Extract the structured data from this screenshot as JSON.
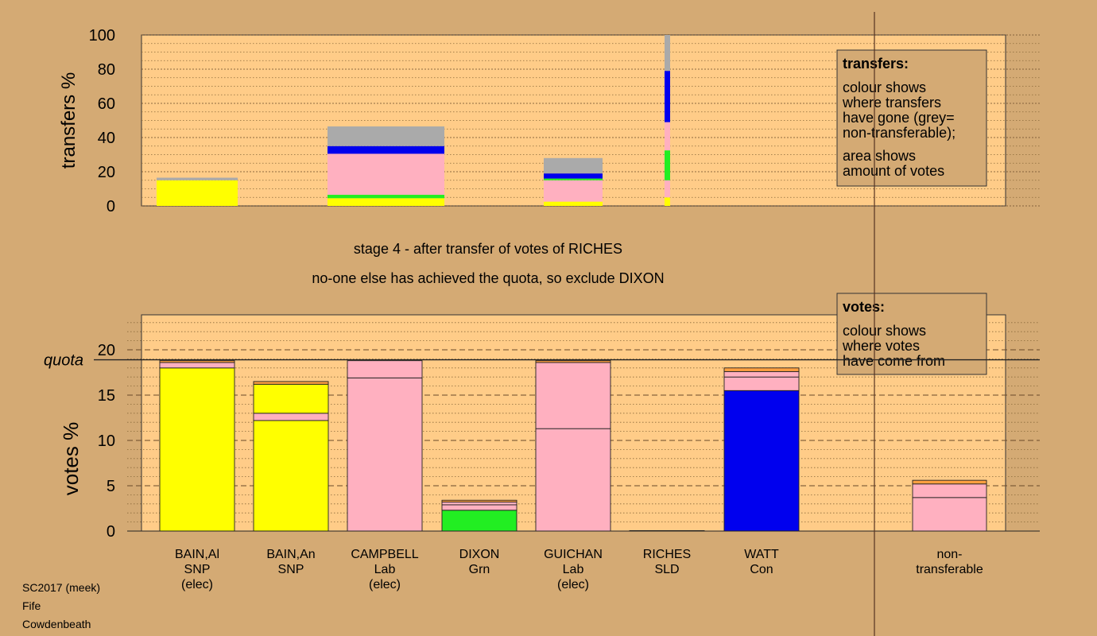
{
  "colors": {
    "background": "#d4aa74",
    "plot_bg": "#ffcc88",
    "SNP": "#ffff00",
    "Lab": "#ffb0c0",
    "Grn": "#22ee22",
    "Con": "#0000ee",
    "SLD": "#ffa040",
    "nontransferable": "#aaaaaa"
  },
  "chart_data": [
    {
      "type": "bar",
      "subtype": "stacked",
      "panel": "transfers",
      "ylabel": "transfers %",
      "ylim": [
        0,
        100
      ],
      "yticks": [
        0,
        20,
        40,
        60,
        80,
        100
      ],
      "categories": [
        "BAIN,Al",
        "CAMPBELL",
        "GUICHAN",
        "RICHES"
      ],
      "bars": [
        {
          "category": "BAIN,Al",
          "segments": [
            {
              "party": "SNP",
              "value": 15
            },
            {
              "party": "nontransferable",
              "value": 1.5
            }
          ]
        },
        {
          "category": "CAMPBELL",
          "segments": [
            {
              "party": "SNP",
              "value": 4.5
            },
            {
              "party": "Grn",
              "value": 2
            },
            {
              "party": "Lab",
              "value": 24
            },
            {
              "party": "Con",
              "value": 4.5
            },
            {
              "party": "nontransferable",
              "value": 11.5
            }
          ]
        },
        {
          "category": "GUICHAN",
          "segments": [
            {
              "party": "SNP",
              "value": 2.5
            },
            {
              "party": "Lab",
              "value": 12.5
            },
            {
              "party": "Grn",
              "value": 1
            },
            {
              "party": "Con",
              "value": 3
            },
            {
              "party": "nontransferable",
              "value": 9
            }
          ]
        },
        {
          "category": "RICHES",
          "segments": [
            {
              "party": "SNP",
              "value": 5
            },
            {
              "party": "Lab",
              "value": 10
            },
            {
              "party": "Grn",
              "value": 17.5
            },
            {
              "party": "Lab",
              "value": 16.5
            },
            {
              "party": "Con",
              "value": 30
            },
            {
              "party": "nontransferable",
              "value": 21
            }
          ]
        }
      ],
      "legend": {
        "title": "transfers:",
        "lines1": [
          "colour shows",
          "where transfers",
          "have gone (grey=",
          "non-transferable);"
        ],
        "lines2": [
          "area shows",
          "amount of votes"
        ]
      }
    },
    {
      "type": "bar",
      "subtype": "stacked",
      "panel": "votes",
      "ylabel": "votes %",
      "ylim": [
        0,
        24
      ],
      "yticks": [
        0,
        5,
        10,
        15,
        20
      ],
      "quota": 18.9,
      "quota_label": "quota",
      "categories": [
        "BAIN,Al",
        "BAIN,An",
        "CAMPBELL",
        "DIXON",
        "GUICHAN",
        "RICHES",
        "WATT",
        "non-transferable"
      ],
      "bars": [
        {
          "category": "BAIN,Al",
          "segments": [
            {
              "party": "SNP",
              "value": 18.0
            },
            {
              "party": "Lab",
              "value": 0.6
            },
            {
              "party": "SLD",
              "value": 0.2
            }
          ]
        },
        {
          "category": "BAIN,An",
          "segments": [
            {
              "party": "SNP",
              "value": 12.2
            },
            {
              "party": "Lab",
              "value": 0.8
            },
            {
              "party": "SNP",
              "value": 3.2
            },
            {
              "party": "SLD",
              "value": 0.3
            }
          ]
        },
        {
          "category": "CAMPBELL",
          "segments": [
            {
              "party": "Lab",
              "value": 16.9
            },
            {
              "party": "Lab",
              "value": 1.9
            }
          ]
        },
        {
          "category": "DIXON",
          "segments": [
            {
              "party": "Grn",
              "value": 2.3
            },
            {
              "party": "Lab",
              "value": 0.6
            },
            {
              "party": "Lab",
              "value": 0.3
            },
            {
              "party": "SLD",
              "value": 0.2
            }
          ]
        },
        {
          "category": "GUICHAN",
          "segments": [
            {
              "party": "Lab",
              "value": 11.3
            },
            {
              "party": "Lab",
              "value": 7.3
            },
            {
              "party": "SLD",
              "value": 0.2
            }
          ]
        },
        {
          "category": "RICHES",
          "segments": [
            {
              "party": "SLD",
              "value": 0.05
            }
          ]
        },
        {
          "category": "WATT",
          "segments": [
            {
              "party": "Con",
              "value": 15.5
            },
            {
              "party": "Lab",
              "value": 1.5
            },
            {
              "party": "Lab",
              "value": 0.6
            },
            {
              "party": "SLD",
              "value": 0.4
            }
          ]
        },
        {
          "category": "non-transferable",
          "segments": [
            {
              "party": "Lab",
              "value": 3.7
            },
            {
              "party": "Lab",
              "value": 1.5
            },
            {
              "party": "SLD",
              "value": 0.4
            }
          ]
        }
      ],
      "xlabels": [
        [
          "BAIN,Al",
          "SNP",
          "(elec)"
        ],
        [
          "BAIN,An",
          "SNP"
        ],
        [
          "CAMPBELL",
          "Lab",
          "(elec)"
        ],
        [
          "DIXON",
          "Grn"
        ],
        [
          "GUICHAN",
          "Lab",
          "(elec)"
        ],
        [
          "RICHES",
          "SLD"
        ],
        [
          "WATT",
          "Con"
        ],
        [
          "non-",
          "transferable"
        ]
      ],
      "legend": {
        "title": "votes:",
        "lines1": [
          "colour shows",
          "where votes",
          "have come from"
        ]
      }
    }
  ],
  "stage_text": "stage 4 - after transfer of votes of RICHES",
  "stage_subtext": "no-one else has achieved the quota, so exclude DIXON",
  "footer": [
    "SC2017 (meek)",
    "Fife",
    "Cowdenbeath"
  ]
}
